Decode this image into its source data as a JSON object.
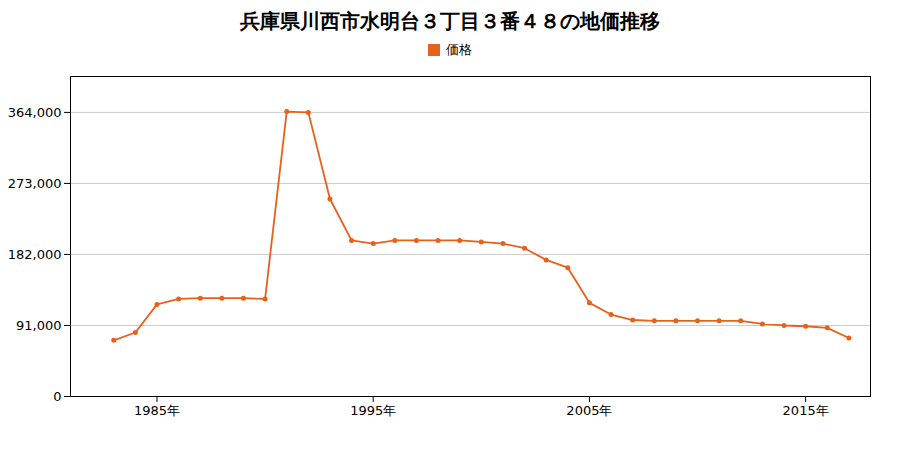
{
  "chart_data": {
    "type": "line",
    "title": "兵庫県川西市水明台３丁目３番４８の地価推移",
    "x": [
      1983,
      1984,
      1985,
      1986,
      1987,
      1988,
      1989,
      1990,
      1991,
      1992,
      1993,
      1994,
      1995,
      1996,
      1997,
      1998,
      1999,
      2000,
      2001,
      2002,
      2003,
      2004,
      2005,
      2006,
      2007,
      2008,
      2009,
      2010,
      2011,
      2012,
      2013,
      2014,
      2015,
      2016,
      2017
    ],
    "series": [
      {
        "name": "価格",
        "color": "#e8611a",
        "marker": "circle",
        "values": [
          72000,
          82000,
          118000,
          125000,
          126000,
          126000,
          126000,
          125000,
          365000,
          364000,
          253000,
          200000,
          196000,
          200000,
          200000,
          200000,
          200000,
          198000,
          196000,
          190000,
          175000,
          165000,
          120000,
          105000,
          98000,
          97000,
          97000,
          97000,
          97000,
          97000,
          93000,
          91000,
          90000,
          88000,
          75000
        ]
      }
    ],
    "xlim": [
      1981,
      2018
    ],
    "xticks": [
      {
        "value": 1985,
        "label": "1985年"
      },
      {
        "value": 1995,
        "label": "1995年"
      },
      {
        "value": 2005,
        "label": "2005年"
      },
      {
        "value": 2015,
        "label": "2015年"
      }
    ],
    "ylim": [
      0,
      410000
    ],
    "yticks": [
      0,
      {
        "value": 91000,
        "label": "91,000"
      },
      {
        "value": 182000,
        "label": "182,000"
      },
      {
        "value": 273000,
        "label": "273,000"
      },
      {
        "value": 364000,
        "label": "364,000"
      }
    ],
    "grid": "y",
    "legend": "top"
  }
}
